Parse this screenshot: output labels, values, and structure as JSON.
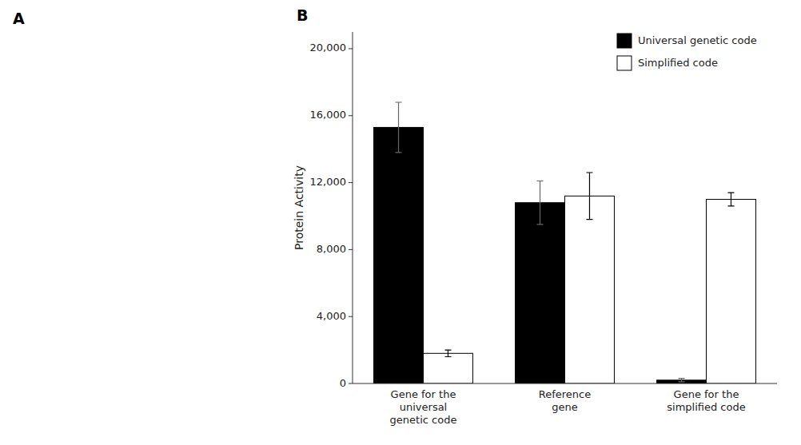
{
  "chart_data": {
    "type": "bar",
    "categories": [
      "Gene for the\nuniversal\ngenetic code",
      "Reference\ngene",
      "Gene for the\nsimplified code"
    ],
    "series": [
      {
        "name": "Universal genetic code",
        "color": "#000000",
        "values": [
          15300,
          10800,
          200
        ],
        "errors": [
          1500,
          1300,
          100
        ]
      },
      {
        "name": "Simplified code",
        "color": "#ffffff",
        "values": [
          1800,
          11200,
          11000
        ],
        "errors": [
          200,
          1400,
          400
        ]
      }
    ],
    "ylabel": "Protein Activity",
    "ylim": [
      0,
      21000
    ],
    "yticks": [
      0,
      {
        "value": 4000,
        "label": "4,000"
      },
      {
        "value": 8000,
        "label": "8,000"
      },
      {
        "value": 12000,
        "label": "12,000"
      },
      {
        "value": 16000,
        "label": "16,000"
      },
      {
        "value": 20000,
        "label": "20,000"
      }
    ],
    "legend": "upper right",
    "grid": false,
    "annotations": [
      "A",
      "B"
    ]
  }
}
